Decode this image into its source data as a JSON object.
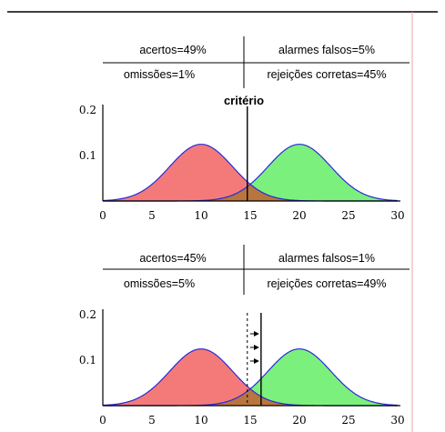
{
  "chart_data": [
    {
      "type": "area",
      "xlim": [
        0,
        30
      ],
      "ylim": [
        0,
        0.2
      ],
      "xticks": [
        "0",
        "5",
        "10",
        "15",
        "20",
        "25",
        "30"
      ],
      "yticks": [
        "0.1",
        "0.2"
      ],
      "series": [
        {
          "mean": 10,
          "sd": 3.2,
          "color": "#f47a7a"
        },
        {
          "mean": 20,
          "sd": 3.2,
          "color": "#7cf07c"
        }
      ],
      "overlap_color": "#b8763e",
      "criterion": 14.7,
      "criterion_label": "critério",
      "table": {
        "hits": "acertos=49%",
        "false_alarms": "alarmes falsos=5%",
        "misses": "omissões=1%",
        "correct_rejections": "rejeições corretas=45%"
      }
    },
    {
      "type": "area",
      "xlim": [
        0,
        30
      ],
      "ylim": [
        0,
        0.2
      ],
      "xticks": [
        "0",
        "5",
        "10",
        "15",
        "20",
        "25",
        "30"
      ],
      "yticks": [
        "0.1",
        "0.2"
      ],
      "series": [
        {
          "mean": 10,
          "sd": 3.2,
          "color": "#f47a7a"
        },
        {
          "mean": 20,
          "sd": 3.2,
          "color": "#7cf07c"
        }
      ],
      "overlap_color": "#b8763e",
      "criterion": 16.1,
      "previous_criterion": 14.7,
      "table": {
        "hits": "acertos=45%",
        "false_alarms": "alarmes falsos=1%",
        "misses": "omissões=5%",
        "correct_rejections": "rejeições corretas=49%"
      }
    }
  ]
}
